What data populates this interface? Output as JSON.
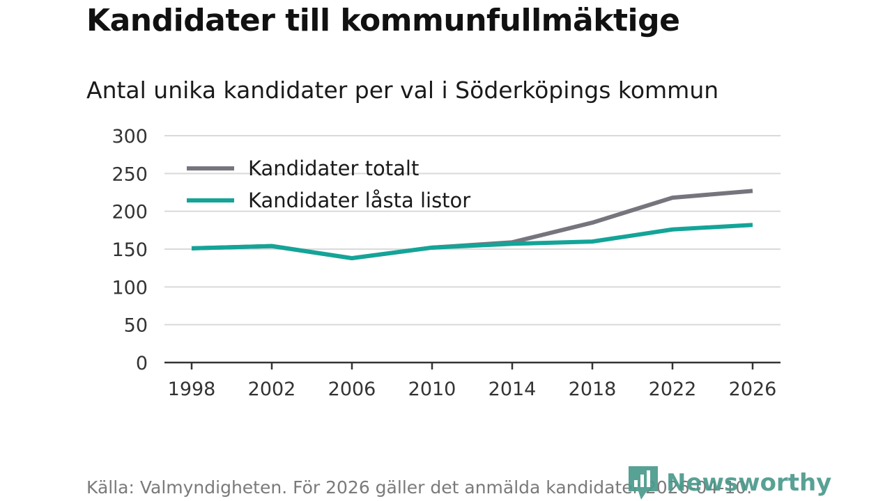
{
  "title": "Kandidater till kommunfullmäktige",
  "footer": {
    "source": "Källa: Valmyndigheten. För 2026 gäller det anmälda kandidater 2026-04-10.",
    "brand": "Newsworthy"
  },
  "colors": {
    "total": "#76757d",
    "locked": "#14a498",
    "grid": "#d9d9d9",
    "axis": "#333333",
    "brand": "#4a9a8c"
  },
  "chart_data": {
    "type": "line",
    "title": "Antal unika kandidater per val i Söderköpings kommun",
    "xlabel": "",
    "ylabel": "",
    "x": [
      1998,
      2002,
      2006,
      2010,
      2014,
      2018,
      2022,
      2026
    ],
    "x_tick_labels": [
      "1998",
      "2002",
      "2006",
      "2010",
      "2014",
      "2018",
      "2022",
      "2026"
    ],
    "y_ticks": [
      0,
      50,
      100,
      150,
      200,
      250,
      300
    ],
    "y_tick_labels": [
      "0",
      "50",
      "100",
      "150",
      "200",
      "250",
      "300"
    ],
    "ylim": [
      0,
      300
    ],
    "grid": true,
    "legend_position": "top-left",
    "series": [
      {
        "name": "Kandidater totalt",
        "values": [
          151,
          154,
          138,
          152,
          159,
          185,
          218,
          227
        ]
      },
      {
        "name": "Kandidater låsta listor",
        "values": [
          151,
          154,
          138,
          152,
          157,
          160,
          176,
          182
        ]
      }
    ]
  }
}
